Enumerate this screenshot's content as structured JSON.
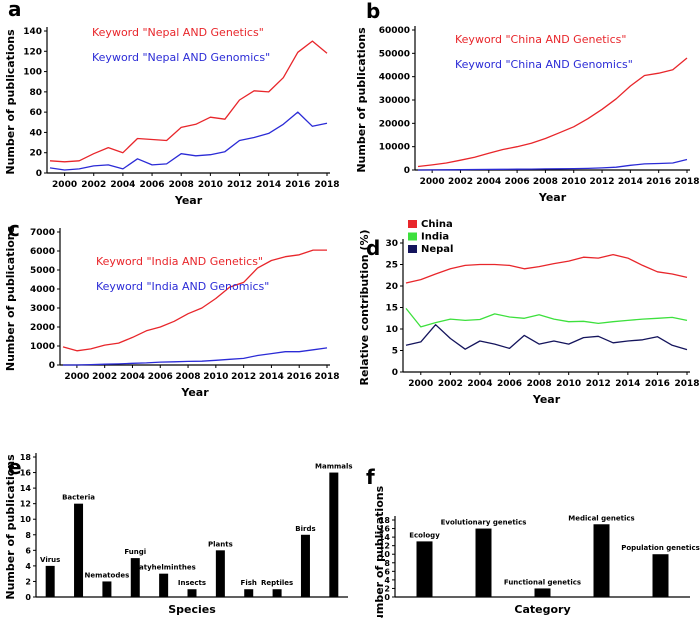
{
  "panels": [
    {
      "letter": "a",
      "chart_data": {
        "type": "line",
        "ylabel": "Number of publications",
        "xlabel": "Year",
        "ylim": [
          0,
          140
        ],
        "yticks": [
          0,
          20,
          40,
          60,
          80,
          100,
          120,
          140
        ],
        "xlim": [
          2000,
          2018
        ],
        "xticks": [
          2000,
          2002,
          2004,
          2006,
          2008,
          2010,
          2012,
          2014,
          2016,
          2018
        ],
        "x": [
          1999,
          2000,
          2001,
          2002,
          2003,
          2004,
          2005,
          2006,
          2007,
          2008,
          2009,
          2010,
          2011,
          2012,
          2013,
          2014,
          2015,
          2016,
          2017,
          2018
        ],
        "series": [
          {
            "name": "Keyword \"Nepal AND Genetics\"",
            "color": "#e8262b",
            "values": [
              12,
              11,
              12,
              19,
              25,
              20,
              34,
              33,
              32,
              45,
              48,
              55,
              53,
              72,
              81,
              80,
              94,
              119,
              130,
              118
            ]
          },
          {
            "name": "Keyword \"Nepal AND Genomics\"",
            "color": "#2b2bd6",
            "values": [
              5,
              3,
              4,
              7,
              8,
              4,
              14,
              8,
              9,
              19,
              17,
              18,
              21,
              32,
              35,
              39,
              48,
              60,
              46,
              49
            ]
          }
        ]
      }
    },
    {
      "letter": "b",
      "chart_data": {
        "type": "line",
        "ylabel": "Number of publications",
        "xlabel": "Year",
        "ylim": [
          0,
          60000
        ],
        "yticks": [
          0,
          10000,
          20000,
          30000,
          40000,
          50000,
          60000
        ],
        "xlim": [
          2000,
          2018
        ],
        "xticks": [
          2000,
          2002,
          2004,
          2006,
          2008,
          2010,
          2012,
          2014,
          2016,
          2018
        ],
        "x": [
          1999,
          2000,
          2001,
          2002,
          2003,
          2004,
          2005,
          2006,
          2007,
          2008,
          2009,
          2010,
          2011,
          2012,
          2013,
          2014,
          2015,
          2016,
          2017,
          2018
        ],
        "series": [
          {
            "name": "Keyword \"China AND Genetics\"",
            "color": "#e8262b",
            "values": [
              1500,
              2200,
              3000,
              4200,
              5500,
              7200,
              8800,
              10000,
              11500,
              13500,
              16000,
              18500,
              22000,
              26000,
              30500,
              36000,
              40500,
              41500,
              43000,
              48000
            ]
          },
          {
            "name": "Keyword \"China AND Genomics\"",
            "color": "#2b2bd6",
            "values": [
              0,
              50,
              100,
              150,
              200,
              250,
              300,
              350,
              400,
              450,
              500,
              600,
              700,
              900,
              1200,
              2000,
              2600,
              2800,
              3000,
              4500
            ]
          }
        ]
      }
    },
    {
      "letter": "c",
      "chart_data": {
        "type": "line",
        "ylabel": "Number of publications",
        "xlabel": "Year",
        "ylim": [
          0,
          7000
        ],
        "yticks": [
          0,
          1000,
          2000,
          3000,
          4000,
          5000,
          6000,
          7000
        ],
        "xlim": [
          2000,
          2018
        ],
        "xticks": [
          2000,
          2002,
          2004,
          2006,
          2008,
          2010,
          2012,
          2014,
          2016,
          2018
        ],
        "x": [
          1999,
          2000,
          2001,
          2002,
          2003,
          2004,
          2005,
          2006,
          2007,
          2008,
          2009,
          2010,
          2011,
          2012,
          2013,
          2014,
          2015,
          2016,
          2017,
          2018
        ],
        "series": [
          {
            "name": "Keyword \"India AND Genetics\"",
            "color": "#e8262b",
            "values": [
              950,
              750,
              850,
              1050,
              1150,
              1450,
              1800,
              2000,
              2300,
              2700,
              3000,
              3500,
              4100,
              4350,
              5100,
              5500,
              5700,
              5800,
              6050,
              6050
            ]
          },
          {
            "name": "Keyword \"India AND Genomics\"",
            "color": "#2b2bd6",
            "values": [
              0,
              0,
              20,
              40,
              60,
              90,
              110,
              150,
              170,
              190,
              200,
              250,
              300,
              350,
              500,
              600,
              700,
              700,
              800,
              900
            ]
          }
        ]
      }
    },
    {
      "letter": "d",
      "chart_data": {
        "type": "line",
        "ylabel": "Relative contribution (%)",
        "xlabel": "Year",
        "ylim": [
          0,
          30
        ],
        "yticks": [
          0,
          5,
          10,
          15,
          20,
          25,
          30
        ],
        "xlim": [
          2000,
          2018
        ],
        "xticks": [
          2000,
          2002,
          2004,
          2006,
          2008,
          2010,
          2012,
          2014,
          2016,
          2018
        ],
        "x": [
          1999,
          2000,
          2001,
          2002,
          2003,
          2004,
          2005,
          2006,
          2007,
          2008,
          2009,
          2010,
          2011,
          2012,
          2013,
          2014,
          2015,
          2016,
          2017,
          2018
        ],
        "legend": "top-left",
        "series": [
          {
            "name": "China",
            "color": "#e8262b",
            "values": [
              20.7,
              21.5,
              22.8,
              24.0,
              24.8,
              25.0,
              25.0,
              24.8,
              24.0,
              24.5,
              25.2,
              25.8,
              26.7,
              26.5,
              27.3,
              26.5,
              24.8,
              23.3,
              22.8,
              22.0
            ]
          },
          {
            "name": "India",
            "color": "#3de03d",
            "values": [
              14.8,
              10.5,
              11.5,
              12.3,
              12.0,
              12.2,
              13.5,
              12.8,
              12.5,
              13.3,
              12.3,
              11.7,
              11.8,
              11.3,
              11.7,
              12.0,
              12.3,
              12.5,
              12.7,
              12.0
            ]
          },
          {
            "name": "Nepal",
            "color": "#14145c",
            "values": [
              6.2,
              7.0,
              11.0,
              7.8,
              5.3,
              7.2,
              6.5,
              5.5,
              8.5,
              6.5,
              7.2,
              6.5,
              8.0,
              8.3,
              6.8,
              7.2,
              7.5,
              8.2,
              6.2,
              5.2
            ]
          }
        ]
      }
    },
    {
      "letter": "e",
      "chart_data": {
        "type": "bar",
        "ylabel": "Number of publications",
        "xlabel": "Species",
        "ylim": [
          0,
          18
        ],
        "yticks": [
          0,
          2,
          4,
          6,
          8,
          10,
          12,
          14,
          16,
          18
        ],
        "categories": [
          "Virus",
          "Bacteria",
          "Nematodes",
          "Fungi",
          "Platyhelminthes",
          "Insects",
          "Plants",
          "Fish",
          "Reptiles",
          "Birds",
          "Mammals"
        ],
        "values": [
          4,
          12,
          2,
          5,
          3,
          1,
          6,
          1,
          1,
          8,
          16
        ]
      }
    },
    {
      "letter": "f",
      "chart_data": {
        "type": "bar",
        "ylabel": "Number of publications",
        "xlabel": "Category",
        "ylim": [
          0,
          18
        ],
        "yticks": [
          0,
          2,
          4,
          6,
          8,
          10,
          12,
          14,
          16,
          18
        ],
        "categories": [
          "Ecology",
          "Evolutionary genetics",
          "Functional genetics",
          "Medical genetics",
          "Population genetics"
        ],
        "values": [
          13,
          16,
          2,
          17,
          10
        ]
      }
    }
  ]
}
